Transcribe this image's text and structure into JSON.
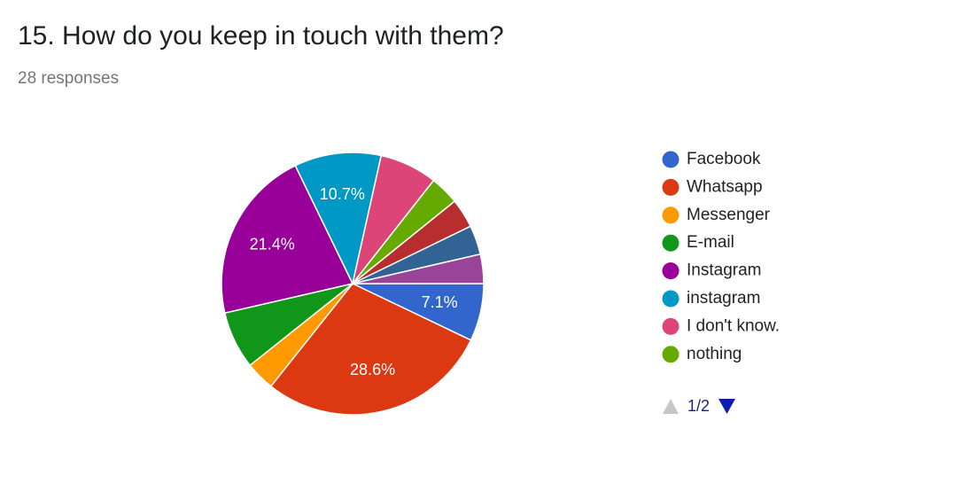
{
  "chart_data": {
    "type": "pie",
    "title": "15. How do you keep in touch with them?",
    "subtitle": "28 responses",
    "categories": [
      "Facebook",
      "Whatsapp",
      "Messenger",
      "E-mail",
      "Instagram",
      "instagram",
      "I don't know.",
      "nothing",
      null,
      null,
      null
    ],
    "values": [
      7.1,
      28.6,
      3.6,
      7.1,
      21.4,
      10.7,
      7.1,
      3.6,
      3.6,
      3.6,
      3.6
    ],
    "value_labels": [
      "7.1%",
      "28.6%",
      null,
      null,
      "21.4%",
      "10.7%",
      null,
      null,
      null,
      null,
      null
    ],
    "colors": [
      "#3366cc",
      "#dc3912",
      "#ff9900",
      "#109618",
      "#990099",
      "#0099c6",
      "#dd4477",
      "#66aa00",
      "#b82e2e",
      "#316395",
      "#994499"
    ],
    "legend_page": "1/2"
  }
}
